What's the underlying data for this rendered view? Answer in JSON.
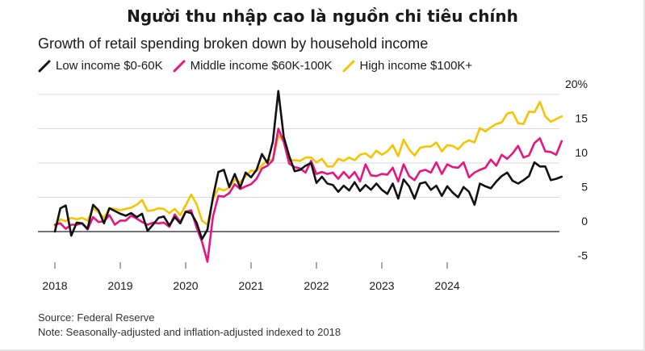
{
  "header": {
    "title": "Người thu nhập cao là nguồn chi tiêu chính",
    "subtitle": "Growth of retail spending broken down by household income"
  },
  "footer": {
    "source": "Source: Federal Reserve",
    "note": "Note: Seasonally-adjusted and inflation-adjusted indexed to 2018"
  },
  "chart_data": {
    "type": "line",
    "title": "Growth of retail spending broken down by household income",
    "xlabel": "",
    "ylabel": "",
    "x_start": "2018-01",
    "x_ticks": [
      "2018",
      "2019",
      "2020",
      "2021",
      "2022",
      "2023",
      "2024"
    ],
    "y_ticks": [
      "20%",
      "15",
      "10",
      "5",
      "0",
      "-5"
    ],
    "y_tick_values": [
      20,
      15,
      10,
      5,
      0,
      -5
    ],
    "ylim": [
      -5,
      20
    ],
    "grid": "horizontal",
    "legend_position": "top-left",
    "series": [
      {
        "name": "Low income $0-60K",
        "color": "#111111",
        "values": [
          0.0,
          3.4,
          3.8,
          -0.6,
          1.3,
          1.2,
          0.4,
          3.9,
          3.1,
          1.2,
          3.4,
          3.0,
          2.6,
          2.3,
          2.7,
          2.1,
          2.6,
          0.1,
          1.0,
          2.0,
          2.2,
          0.9,
          2.1,
          1.2,
          2.9,
          2.7,
          1.3,
          -1.1,
          0.3,
          5.0,
          8.7,
          9.0,
          6.5,
          8.4,
          6.4,
          8.6,
          7.9,
          9.0,
          11.3,
          10.0,
          13.1,
          20.5,
          13.8,
          11.0,
          8.8,
          9.0,
          9.6,
          10.0,
          7.1,
          8.0,
          7.0,
          6.8,
          5.8,
          6.7,
          6.0,
          7.2,
          5.9,
          6.8,
          6.1,
          7.0,
          6.1,
          5.5,
          7.0,
          4.8,
          7.6,
          6.6,
          4.8,
          7.0,
          7.2,
          6.1,
          6.7,
          5.2,
          6.6,
          5.7,
          5.0,
          6.5,
          5.8,
          3.9,
          7.0,
          6.6,
          6.3,
          7.3,
          8.1,
          8.6,
          7.4,
          7.0,
          7.5,
          8.1,
          10.1,
          9.5,
          9.5,
          7.5,
          7.7,
          8.0
        ]
      },
      {
        "name": "Middle income $60K-100K",
        "color": "#e8157e",
        "values": [
          1.0,
          1.2,
          0.4,
          1.0,
          1.0,
          1.2,
          0.3,
          2.1,
          1.4,
          1.5,
          2.4,
          1.0,
          1.6,
          1.6,
          2.3,
          1.9,
          1.4,
          1.0,
          1.3,
          1.2,
          1.3,
          0.7,
          2.5,
          1.4,
          2.9,
          3.1,
          0.6,
          -1.5,
          -4.4,
          2.2,
          5.2,
          5.1,
          5.6,
          6.9,
          6.2,
          6.6,
          6.9,
          7.7,
          9.2,
          9.6,
          10.4,
          15.0,
          13.1,
          9.9,
          9.4,
          9.2,
          8.6,
          10.3,
          8.4,
          8.7,
          8.4,
          8.6,
          7.7,
          8.7,
          7.8,
          8.7,
          7.3,
          9.8,
          8.2,
          8.1,
          8.4,
          8.3,
          9.3,
          7.3,
          9.8,
          8.1,
          7.5,
          8.8,
          9.0,
          8.6,
          10.1,
          8.4,
          9.8,
          9.4,
          9.3,
          10.1,
          7.9,
          8.6,
          9.0,
          9.3,
          10.5,
          9.6,
          11.2,
          10.6,
          11.4,
          12.5,
          10.8,
          11.1,
          12.9,
          13.6,
          11.7,
          11.6,
          11.2,
          13.2
        ]
      },
      {
        "name": "High income $100K+",
        "color": "#f6c400",
        "values": [
          0.8,
          1.8,
          1.5,
          2.0,
          1.8,
          2.0,
          1.6,
          3.4,
          2.8,
          2.0,
          3.4,
          3.3,
          3.1,
          3.3,
          3.5,
          3.9,
          4.6,
          3.0,
          3.1,
          3.4,
          3.3,
          2.7,
          3.3,
          2.4,
          3.8,
          5.4,
          4.0,
          1.6,
          1.0,
          4.7,
          6.3,
          6.0,
          6.4,
          7.6,
          7.2,
          8.1,
          8.9,
          8.8,
          9.7,
          10.4,
          10.5,
          14.0,
          13.2,
          10.4,
          10.4,
          10.3,
          10.8,
          10.8,
          10.1,
          10.6,
          9.5,
          9.5,
          10.6,
          10.3,
          10.8,
          10.4,
          11.2,
          11.4,
          10.8,
          11.8,
          11.2,
          11.7,
          12.6,
          11.0,
          13.4,
          12.0,
          11.1,
          12.2,
          12.4,
          12.4,
          13.0,
          11.7,
          12.6,
          12.5,
          12.0,
          12.9,
          13.3,
          13.0,
          15.1,
          14.6,
          15.2,
          15.7,
          15.9,
          17.2,
          17.4,
          15.8,
          15.7,
          17.5,
          17.4,
          18.9,
          16.8,
          16.0,
          16.4,
          16.8
        ]
      }
    ]
  }
}
